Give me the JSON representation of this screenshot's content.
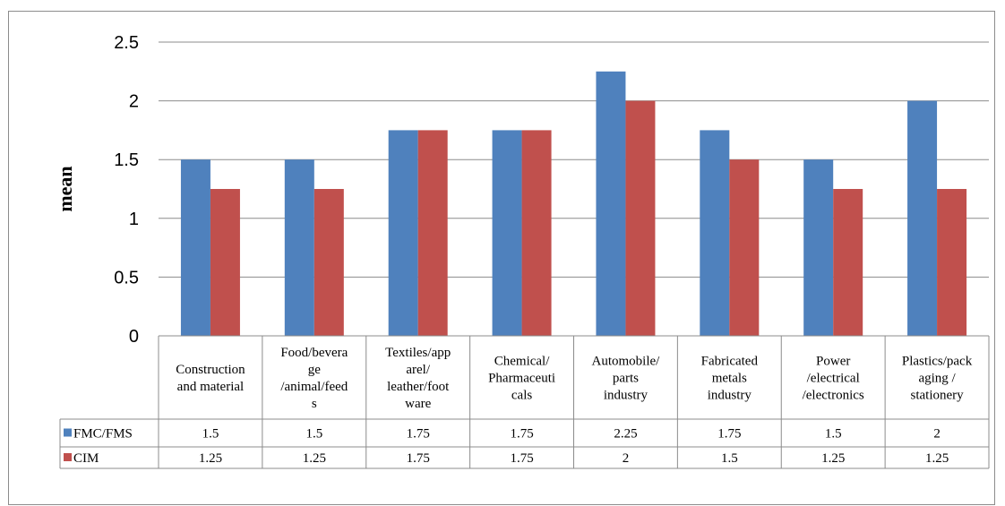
{
  "chart_data": {
    "type": "bar",
    "title": "",
    "xlabel": "",
    "ylabel": "mean",
    "ylim": [
      0,
      2.5
    ],
    "yticks": [
      "0",
      "0.5",
      "1",
      "1.5",
      "2",
      "2.5"
    ],
    "ytick_values": [
      0,
      0.5,
      1,
      1.5,
      2,
      2.5
    ],
    "grid": true,
    "legend": "data-table",
    "categories": [
      [
        "Construction",
        "and material"
      ],
      [
        "Food/bevera",
        "ge",
        "/animal/feed",
        "s"
      ],
      [
        "Textiles/app",
        "arel/",
        "leather/foot",
        "ware"
      ],
      [
        "Chemical/",
        "Pharmaceuti",
        "cals"
      ],
      [
        "Automobile/",
        "parts",
        "industry"
      ],
      [
        "Fabricated",
        "metals",
        "industry"
      ],
      [
        "Power",
        "/electrical",
        "/electronics"
      ],
      [
        "Plastics/pack",
        "aging /",
        "stationery"
      ]
    ],
    "series": [
      {
        "name": "FMC/FMS",
        "color": "#4f81bd",
        "values": [
          1.5,
          1.5,
          1.75,
          1.75,
          2.25,
          1.75,
          1.5,
          2
        ],
        "labels": [
          "1.5",
          "1.5",
          "1.75",
          "1.75",
          "2.25",
          "1.75",
          "1.5",
          "2"
        ]
      },
      {
        "name": "CIM",
        "color": "#c0504d",
        "values": [
          1.25,
          1.25,
          1.75,
          1.75,
          2,
          1.5,
          1.25,
          1.25
        ],
        "labels": [
          "1.25",
          "1.25",
          "1.75",
          "1.75",
          "2",
          "1.5",
          "1.25",
          "1.25"
        ]
      }
    ]
  }
}
